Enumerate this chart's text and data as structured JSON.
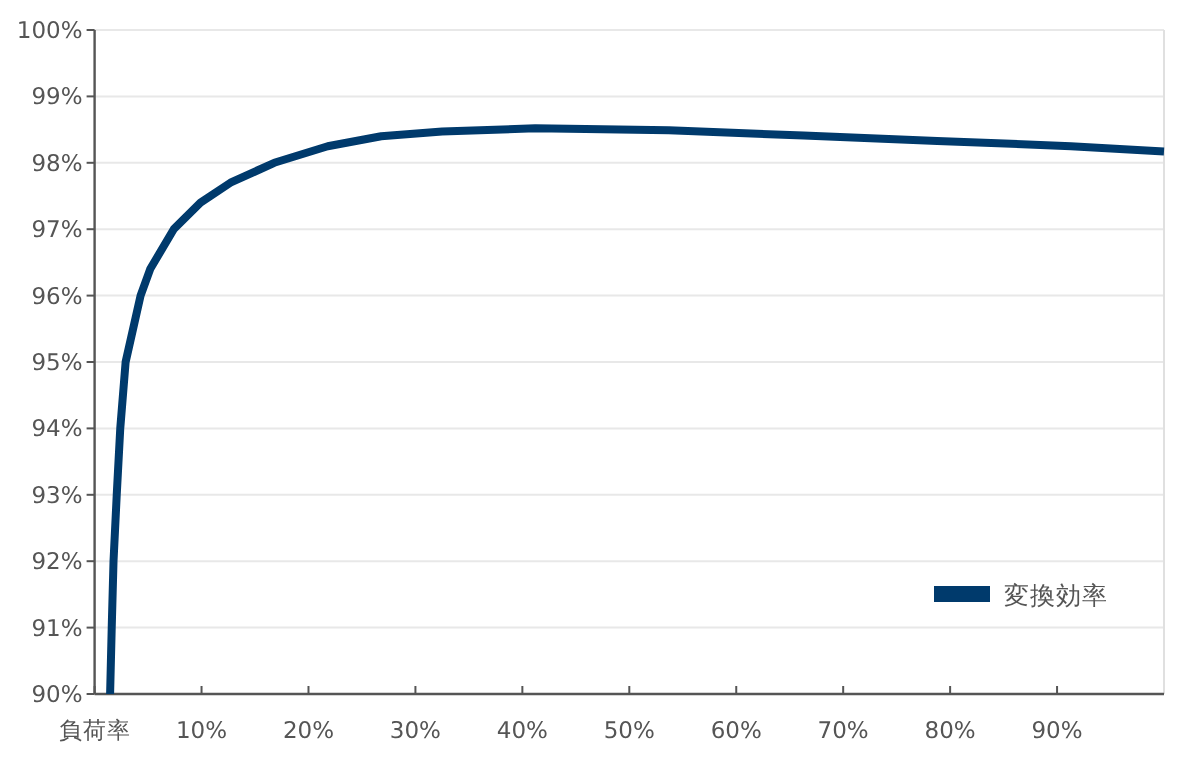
{
  "chart_data": {
    "type": "line",
    "x": [
      1.45,
      1.6,
      1.77,
      2.07,
      2.4,
      2.9,
      4.3,
      5.2,
      7.4,
      9.9,
      12.7,
      16.8,
      21.8,
      26.8,
      32.5,
      41.2,
      53.7,
      66.3,
      78.8,
      91.3,
      100
    ],
    "series": [
      {
        "name": "変換効率",
        "color": "#003a6c",
        "values": [
          90,
          91,
          92,
          93,
          94,
          95,
          96,
          96.4,
          97,
          97.4,
          97.7,
          98,
          98.25,
          98.4,
          98.47,
          98.52,
          98.49,
          98.41,
          98.33,
          98.25,
          98.17
        ]
      }
    ],
    "xlim": [
      0,
      100
    ],
    "xticks": [
      {
        "value": 0,
        "label": "負荷率"
      },
      {
        "value": 10,
        "label": "10%"
      },
      {
        "value": 20,
        "label": "20%"
      },
      {
        "value": 30,
        "label": "30%"
      },
      {
        "value": 40,
        "label": "40%"
      },
      {
        "value": 50,
        "label": "50%"
      },
      {
        "value": 60,
        "label": "60%"
      },
      {
        "value": 70,
        "label": "70%"
      },
      {
        "value": 80,
        "label": "80%"
      },
      {
        "value": 90,
        "label": "90%"
      },
      {
        "value": 100,
        "label": null
      }
    ],
    "ylim": [
      90,
      100
    ],
    "yticks": [
      {
        "value": 90,
        "label": "90%"
      },
      {
        "value": 91,
        "label": "91%"
      },
      {
        "value": 92,
        "label": "92%"
      },
      {
        "value": 93,
        "label": "93%"
      },
      {
        "value": 94,
        "label": "94%"
      },
      {
        "value": 95,
        "label": "95%"
      },
      {
        "value": 96,
        "label": "96%"
      },
      {
        "value": 97,
        "label": "97%"
      },
      {
        "value": 98,
        "label": "98%"
      },
      {
        "value": 99,
        "label": "99%"
      },
      {
        "value": 100,
        "label": "100%"
      }
    ],
    "grid": "y",
    "legend": "bottom right",
    "marker": "none",
    "line_style": "solid"
  }
}
